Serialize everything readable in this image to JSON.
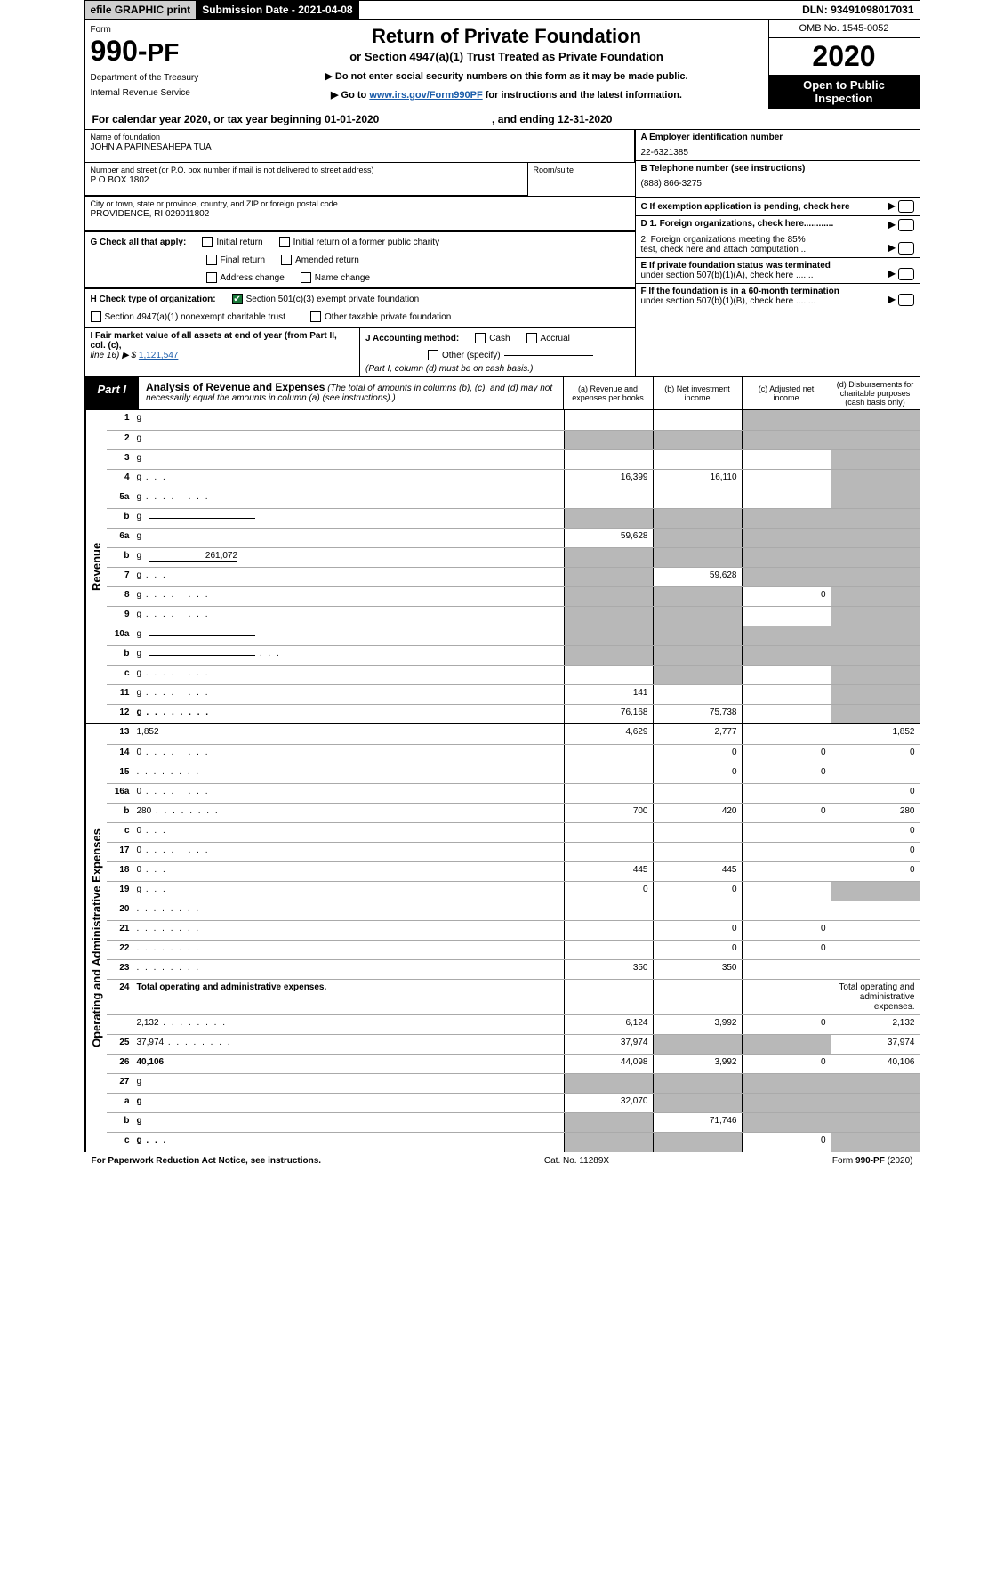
{
  "topbar": {
    "efile": "efile GRAPHIC print",
    "subdate_label": "Submission Date - ",
    "subdate": "2021-04-08",
    "dln_label": "DLN: ",
    "dln": "93491098017031"
  },
  "header": {
    "form_label": "Form",
    "form_num_prefix": "990-",
    "form_num_suffix": "PF",
    "dept1": "Department of the Treasury",
    "dept2": "Internal Revenue Service",
    "title": "Return of Private Foundation",
    "subtitle": "or Section 4947(a)(1) Trust Treated as Private Foundation",
    "note1": "▶ Do not enter social security numbers on this form as it may be made public.",
    "note2_pre": "▶ Go to ",
    "note2_link": "www.irs.gov/Form990PF",
    "note2_post": " for instructions and the latest information.",
    "omb": "OMB No. 1545-0052",
    "year": "2020",
    "inspect1": "Open to Public",
    "inspect2": "Inspection"
  },
  "calendar": {
    "pre": "For calendar year 2020, or tax year beginning ",
    "begin": "01-01-2020",
    "mid": ", and ending ",
    "end": "12-31-2020"
  },
  "info": {
    "name_lbl": "Name of foundation",
    "name": "JOHN A PAPINESAHEPA TUA",
    "addr_lbl": "Number and street (or P.O. box number if mail is not delivered to street address)",
    "addr": "P O BOX 1802",
    "room_lbl": "Room/suite",
    "city_lbl": "City or town, state or province, country, and ZIP or foreign postal code",
    "city": "PROVIDENCE, RI  029011802",
    "a_lbl": "A Employer identification number",
    "a_val": "22-6321385",
    "b_lbl": "B Telephone number (see instructions)",
    "b_val": "(888) 866-3275",
    "c_lbl": "C If exemption application is pending, check here",
    "g_lbl": "G Check all that apply:",
    "g_opts": [
      "Initial return",
      "Initial return of a former public charity",
      "Final return",
      "Amended return",
      "Address change",
      "Name change"
    ],
    "d1": "D 1. Foreign organizations, check here............",
    "d2a": "2. Foreign organizations meeting the 85%",
    "d2b": "test, check here and attach computation ...",
    "h_lbl": "H Check type of organization:",
    "h1": "Section 501(c)(3) exempt private foundation",
    "h2": "Section 4947(a)(1) nonexempt charitable trust",
    "h3": "Other taxable private foundation",
    "e1": "E If private foundation status was terminated",
    "e2": "under section 507(b)(1)(A), check here .......",
    "i_lbl": "I Fair market value of all assets at end of year (from Part II, col. (c),",
    "i_lbl2": "line 16) ▶ $ ",
    "i_val": "1,121,547",
    "j_lbl": "J Accounting method:",
    "j_cash": "Cash",
    "j_accrual": "Accrual",
    "j_other": "Other (specify)",
    "j_note": "(Part I, column (d) must be on cash basis.)",
    "f1": "F If the foundation is in a 60-month termination",
    "f2": "under section 507(b)(1)(B), check here ........"
  },
  "part1": {
    "tab": "Part I",
    "title": "Analysis of Revenue and Expenses",
    "sub": "(The total of amounts in columns (b), (c), and (d) may not necessarily equal the amounts in column (a) (see instructions).)",
    "cols": {
      "a": "(a)   Revenue and expenses per books",
      "b": "(b)   Net investment income",
      "c": "(c)   Adjusted net income",
      "d": "(d)   Disbursements for charitable purposes (cash basis only)"
    }
  },
  "sides": {
    "rev": "Revenue",
    "exp": "Operating and Administrative Expenses"
  },
  "rows": [
    {
      "n": "1",
      "d": "g",
      "a": "",
      "b": "",
      "c": "g"
    },
    {
      "n": "2",
      "d": "g",
      "nb": true,
      "a": "g",
      "b": "g",
      "c": "g"
    },
    {
      "n": "3",
      "d": "g",
      "a": "",
      "b": "",
      "c": ""
    },
    {
      "n": "4",
      "d": "g",
      "dots": "sm",
      "a": "16,399",
      "b": "16,110",
      "c": ""
    },
    {
      "n": "5a",
      "d": "g",
      "dots": "y",
      "a": "",
      "b": "",
      "c": ""
    },
    {
      "n": "b",
      "d": "g",
      "uline": true,
      "a": "g",
      "b": "g",
      "c": "g"
    },
    {
      "n": "6a",
      "d": "g",
      "a": "59,628",
      "b": "g",
      "c": "g"
    },
    {
      "n": "b",
      "d": "g",
      "uval": "261,072",
      "a": "g",
      "b": "g",
      "c": "g"
    },
    {
      "n": "7",
      "d": "g",
      "dots": "sm",
      "a": "g",
      "b": "59,628",
      "c": "g"
    },
    {
      "n": "8",
      "d": "g",
      "dots": "y",
      "a": "g",
      "b": "g",
      "c": "0"
    },
    {
      "n": "9",
      "d": "g",
      "dots": "y",
      "a": "g",
      "b": "g",
      "c": ""
    },
    {
      "n": "10a",
      "d": "g",
      "uline": true,
      "a": "g",
      "b": "g",
      "c": "g"
    },
    {
      "n": "b",
      "d": "g",
      "dots": "sm",
      "uline": true,
      "a": "g",
      "b": "g",
      "c": "g"
    },
    {
      "n": "c",
      "d": "g",
      "dots": "y",
      "a": "",
      "b": "g",
      "c": ""
    },
    {
      "n": "11",
      "d": "g",
      "dots": "y",
      "a": "141",
      "b": "",
      "c": ""
    },
    {
      "n": "12",
      "d": "g",
      "bold": true,
      "dots": "y",
      "a": "76,168",
      "b": "75,738",
      "c": ""
    }
  ],
  "exp_rows": [
    {
      "n": "13",
      "d": "1,852",
      "a": "4,629",
      "b": "2,777",
      "c": ""
    },
    {
      "n": "14",
      "d": "0",
      "dots": "y",
      "a": "",
      "b": "0",
      "c": "0"
    },
    {
      "n": "15",
      "d": "",
      "dots": "y",
      "a": "",
      "b": "0",
      "c": "0"
    },
    {
      "n": "16a",
      "d": "0",
      "dots": "y",
      "a": "",
      "b": "",
      "c": ""
    },
    {
      "n": "b",
      "d": "280",
      "dots": "y",
      "a": "700",
      "b": "420",
      "c": "0"
    },
    {
      "n": "c",
      "d": "0",
      "dots": "sm",
      "a": "",
      "b": "",
      "c": ""
    },
    {
      "n": "17",
      "d": "0",
      "dots": "y",
      "a": "",
      "b": "",
      "c": ""
    },
    {
      "n": "18",
      "d": "0",
      "dots": "sm",
      "a": "445",
      "b": "445",
      "c": ""
    },
    {
      "n": "19",
      "d": "g",
      "dots": "sm",
      "a": "0",
      "b": "0",
      "c": ""
    },
    {
      "n": "20",
      "d": "",
      "dots": "y",
      "a": "",
      "b": "",
      "c": ""
    },
    {
      "n": "21",
      "d": "",
      "dots": "y",
      "a": "",
      "b": "0",
      "c": "0"
    },
    {
      "n": "22",
      "d": "",
      "dots": "y",
      "a": "",
      "b": "0",
      "c": "0"
    },
    {
      "n": "23",
      "d": "",
      "dots": "y",
      "a": "350",
      "b": "350",
      "c": ""
    },
    {
      "n": "24",
      "d": "Total operating and administrative expenses.",
      "bold": true
    },
    {
      "n": "",
      "d": "2,132",
      "dots": "y",
      "a": "6,124",
      "b": "3,992",
      "c": "0"
    },
    {
      "n": "25",
      "d": "37,974",
      "dots": "y",
      "a": "37,974",
      "b": "g",
      "c": "g"
    },
    {
      "n": "26",
      "d": "40,106",
      "bold": true,
      "a": "44,098",
      "b": "3,992",
      "c": "0"
    },
    {
      "n": "27",
      "d": "g",
      "a": "g",
      "b": "g",
      "c": "g"
    },
    {
      "n": "a",
      "d": "g",
      "bold": true,
      "a": "32,070",
      "b": "g",
      "c": "g"
    },
    {
      "n": "b",
      "d": "g",
      "bold": true,
      "a": "g",
      "b": "71,746",
      "c": "g"
    },
    {
      "n": "c",
      "d": "g",
      "bold": true,
      "dots": "sm",
      "a": "g",
      "b": "g",
      "c": "0"
    }
  ],
  "footer": {
    "left": "For Paperwork Reduction Act Notice, see instructions.",
    "mid": "Cat. No. 11289X",
    "right": "Form 990-PF (2020)"
  }
}
